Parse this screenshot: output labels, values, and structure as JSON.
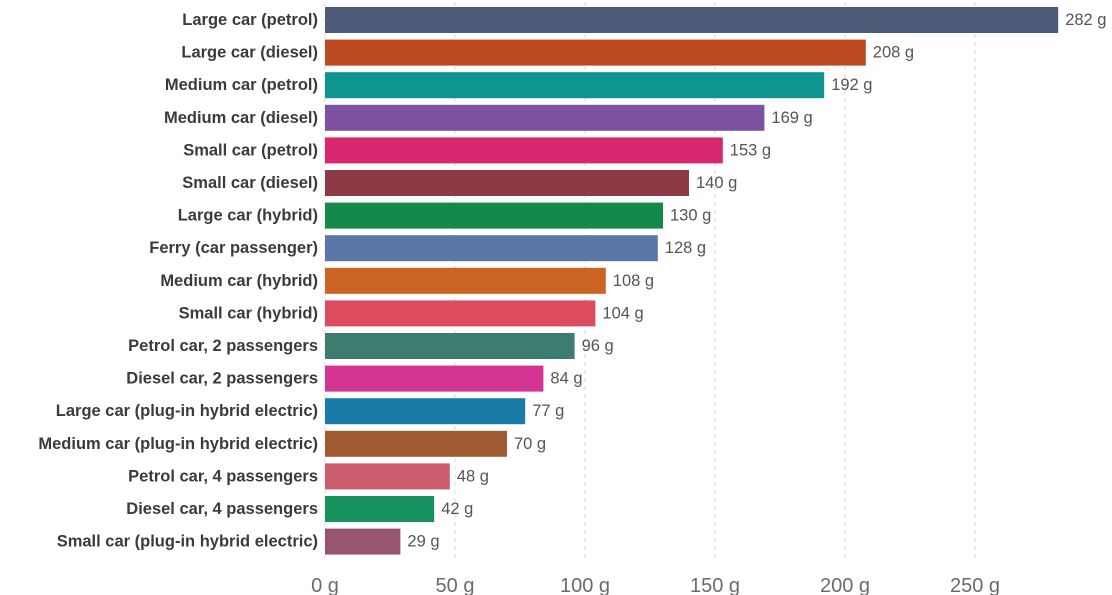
{
  "chart_data": {
    "type": "bar",
    "orientation": "horizontal",
    "categories": [
      "Large car (petrol)",
      "Large car (diesel)",
      "Medium car (petrol)",
      "Medium car (diesel)",
      "Small car (petrol)",
      "Small car (diesel)",
      "Large car (hybrid)",
      "Ferry (car passenger)",
      "Medium car (hybrid)",
      "Small car (hybrid)",
      "Petrol car, 2 passengers",
      "Diesel car, 2 passengers",
      "Large car (plug-in hybrid electric)",
      "Medium car (plug-in hybrid electric)",
      "Petrol car, 4 passengers",
      "Diesel car, 4 passengers",
      "Small car (plug-in hybrid electric)"
    ],
    "values": [
      282,
      208,
      192,
      169,
      153,
      140,
      130,
      128,
      108,
      104,
      96,
      84,
      77,
      70,
      48,
      42,
      29
    ],
    "value_labels": [
      "282 g",
      "208 g",
      "192 g",
      "169 g",
      "153 g",
      "140 g",
      "130 g",
      "128 g",
      "108 g",
      "104 g",
      "96 g",
      "84 g",
      "77 g",
      "70 g",
      "48 g",
      "42 g",
      "29 g"
    ],
    "colors": [
      "#4c5a78",
      "#bb4a21",
      "#0f9590",
      "#7b51a0",
      "#d9276f",
      "#8b3a46",
      "#138a4a",
      "#5a77a8",
      "#cc6424",
      "#dd4b5e",
      "#3d7d70",
      "#d43594",
      "#1a7aa8",
      "#a05a32",
      "#cc5b6e",
      "#17925f",
      "#985572"
    ],
    "x_ticks": [
      0,
      50,
      100,
      150,
      200,
      250
    ],
    "x_tick_labels": [
      "0 g",
      "50 g",
      "100 g",
      "150 g",
      "200 g",
      "250 g"
    ],
    "xlim": [
      0,
      282
    ],
    "grid": "vertical-dashed",
    "title": "",
    "xlabel": "",
    "ylabel": ""
  }
}
